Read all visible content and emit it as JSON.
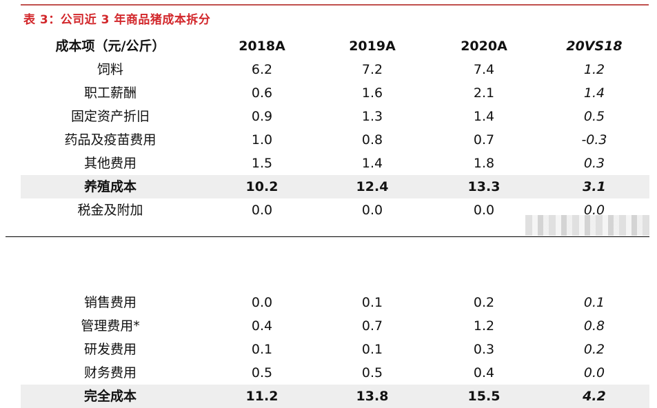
{
  "title": "表 3：公司近 3 年商品猪成本拆分",
  "header": [
    "成本项（元/公斤）",
    "2018A",
    "2019A",
    "2020A",
    "20VS18"
  ],
  "rows_top": [
    [
      "饲料",
      "6.2",
      "7.2",
      "7.4",
      "1.2"
    ],
    [
      "职工薪酬",
      "0.6",
      "1.6",
      "2.1",
      "1.4"
    ],
    [
      "固定资产折旧",
      "0.9",
      "1.3",
      "1.4",
      "0.5"
    ],
    [
      "药品及疫苗费用",
      "1.0",
      "0.8",
      "0.7",
      "-0.3"
    ],
    [
      "其他费用",
      "1.5",
      "1.4",
      "1.8",
      "0.3"
    ],
    [
      "养殖成本",
      "10.2",
      "12.4",
      "13.3",
      "3.1"
    ],
    [
      "税金及附加",
      "0.0",
      "0.0",
      "0.0",
      "0.0"
    ]
  ],
  "rows_bottom": [
    [
      "销售费用",
      "0.0",
      "0.1",
      "0.2",
      "0.1"
    ],
    [
      "管理费用*",
      "0.4",
      "0.7",
      "1.2",
      "0.8"
    ],
    [
      "研发费用",
      "0.1",
      "0.1",
      "0.3",
      "0.2"
    ],
    [
      "财务费用",
      "0.5",
      "0.5",
      "0.4",
      "0.0"
    ],
    [
      "完全成本",
      "11.2",
      "13.8",
      "15.5",
      "4.2"
    ]
  ]
}
